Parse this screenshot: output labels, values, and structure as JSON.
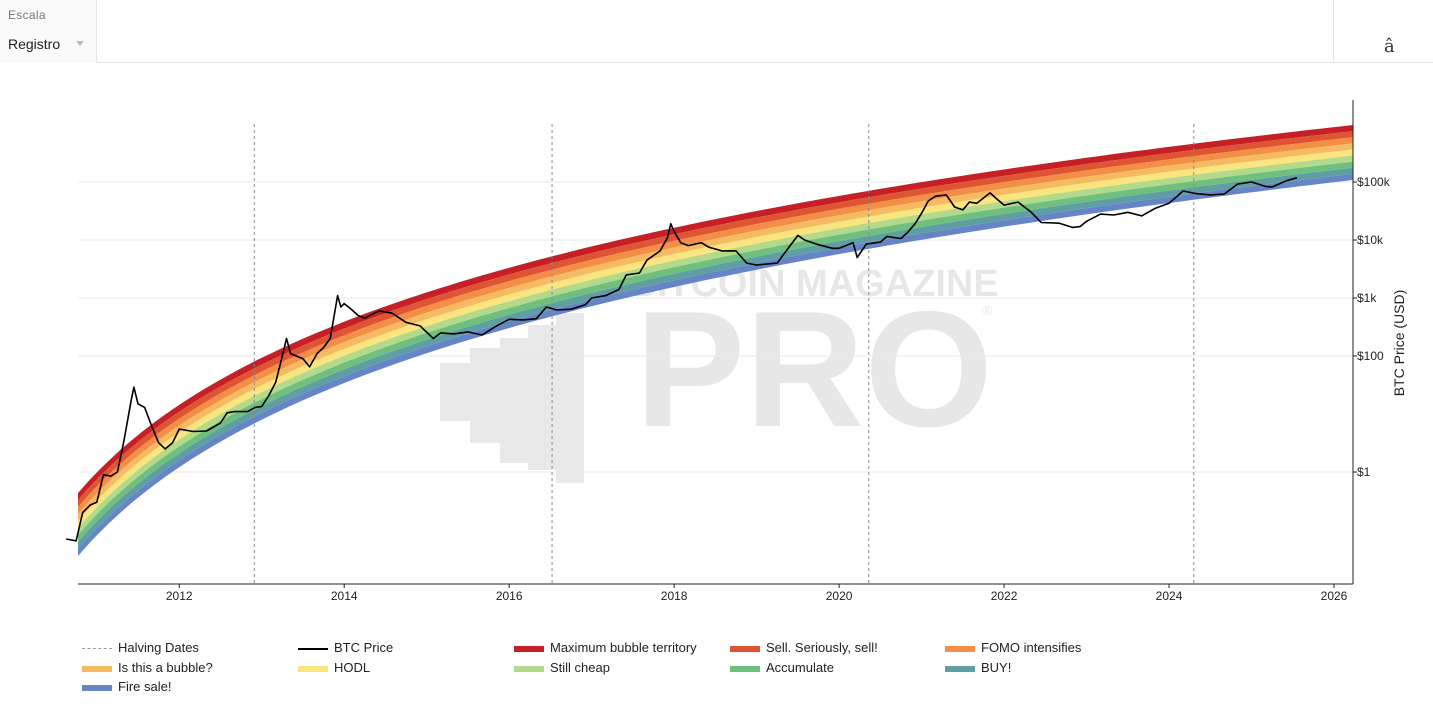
{
  "controls": {
    "scale_label": "Escala",
    "scale_value": "Registro",
    "right_glyph": "â"
  },
  "watermark": {
    "top_text": "BITCOIN MAGAZINE",
    "main_text": "PRO",
    "reg": "®"
  },
  "chart_data": {
    "type": "line",
    "title": "",
    "xlabel": "",
    "ylabel": "BTC Price (USD)",
    "y_scale": "log",
    "xlim": [
      2010.63,
      2026.2
    ],
    "ylim": [
      0.02,
      1000000
    ],
    "x_ticks": [
      {
        "value": 2012,
        "label": "2012"
      },
      {
        "value": 2014,
        "label": "2014"
      },
      {
        "value": 2016,
        "label": "2016"
      },
      {
        "value": 2018,
        "label": "2018"
      },
      {
        "value": 2020,
        "label": "2020"
      },
      {
        "value": 2022,
        "label": "2022"
      },
      {
        "value": 2024,
        "label": "2024"
      },
      {
        "value": 2026,
        "label": "2026"
      }
    ],
    "y_ticks": [
      {
        "value": 1,
        "label": "$1"
      },
      {
        "value": 100,
        "label": "$100"
      },
      {
        "value": 1000,
        "label": "$1k"
      },
      {
        "value": 10000,
        "label": "$10k"
      },
      {
        "value": 100000,
        "label": "$100k"
      }
    ],
    "grid": "horizontal",
    "legend_position": "bottom",
    "halving_dates": [
      2012.91,
      2016.52,
      2020.36,
      2024.3
    ],
    "halving_series": {
      "name": "Halving Dates",
      "color": "#999999"
    },
    "price_series": {
      "name": "BTC Price",
      "color": "#000000",
      "points": [
        [
          2010.63,
          0.07
        ],
        [
          2010.75,
          0.065
        ],
        [
          2010.83,
          0.2
        ],
        [
          2010.92,
          0.27
        ],
        [
          2011.0,
          0.3
        ],
        [
          2011.08,
          0.9
        ],
        [
          2011.17,
          0.85
        ],
        [
          2011.25,
          1.0
        ],
        [
          2011.33,
          3.5
        ],
        [
          2011.42,
          18
        ],
        [
          2011.45,
          29
        ],
        [
          2011.5,
          15
        ],
        [
          2011.58,
          13
        ],
        [
          2011.67,
          6
        ],
        [
          2011.75,
          3.2
        ],
        [
          2011.83,
          2.5
        ],
        [
          2011.92,
          3.2
        ],
        [
          2012.0,
          5.5
        ],
        [
          2012.17,
          5
        ],
        [
          2012.33,
          5.1
        ],
        [
          2012.5,
          7
        ],
        [
          2012.58,
          10.5
        ],
        [
          2012.67,
          11
        ],
        [
          2012.83,
          11
        ],
        [
          2012.92,
          13
        ],
        [
          2013.0,
          13.5
        ],
        [
          2013.08,
          20
        ],
        [
          2013.17,
          35
        ],
        [
          2013.25,
          100
        ],
        [
          2013.3,
          200
        ],
        [
          2013.35,
          110
        ],
        [
          2013.5,
          90
        ],
        [
          2013.58,
          65
        ],
        [
          2013.67,
          110
        ],
        [
          2013.75,
          140
        ],
        [
          2013.83,
          200
        ],
        [
          2013.92,
          1100
        ],
        [
          2013.96,
          700
        ],
        [
          2014.0,
          800
        ],
        [
          2014.08,
          650
        ],
        [
          2014.17,
          500
        ],
        [
          2014.25,
          450
        ],
        [
          2014.42,
          600
        ],
        [
          2014.58,
          550
        ],
        [
          2014.75,
          380
        ],
        [
          2014.92,
          330
        ],
        [
          2015.08,
          200
        ],
        [
          2015.17,
          250
        ],
        [
          2015.33,
          240
        ],
        [
          2015.5,
          260
        ],
        [
          2015.67,
          230
        ],
        [
          2015.83,
          320
        ],
        [
          2016.0,
          430
        ],
        [
          2016.17,
          420
        ],
        [
          2016.33,
          440
        ],
        [
          2016.45,
          700
        ],
        [
          2016.58,
          620
        ],
        [
          2016.75,
          640
        ],
        [
          2016.92,
          760
        ],
        [
          2017.0,
          1000
        ],
        [
          2017.17,
          1100
        ],
        [
          2017.33,
          1400
        ],
        [
          2017.42,
          2500
        ],
        [
          2017.58,
          2700
        ],
        [
          2017.67,
          4500
        ],
        [
          2017.83,
          6500
        ],
        [
          2017.92,
          11000
        ],
        [
          2017.96,
          19000
        ],
        [
          2018.0,
          14000
        ],
        [
          2018.08,
          9000
        ],
        [
          2018.17,
          8000
        ],
        [
          2018.33,
          9000
        ],
        [
          2018.42,
          7500
        ],
        [
          2018.58,
          6500
        ],
        [
          2018.75,
          6500
        ],
        [
          2018.88,
          4000
        ],
        [
          2019.0,
          3700
        ],
        [
          2019.25,
          4000
        ],
        [
          2019.42,
          8500
        ],
        [
          2019.5,
          12000
        ],
        [
          2019.58,
          10000
        ],
        [
          2019.75,
          8300
        ],
        [
          2019.92,
          7200
        ],
        [
          2020.0,
          7200
        ],
        [
          2020.17,
          9000
        ],
        [
          2020.22,
          5000
        ],
        [
          2020.33,
          8500
        ],
        [
          2020.5,
          9200
        ],
        [
          2020.58,
          11500
        ],
        [
          2020.75,
          10600
        ],
        [
          2020.83,
          13500
        ],
        [
          2020.92,
          19000
        ],
        [
          2021.0,
          29000
        ],
        [
          2021.08,
          47000
        ],
        [
          2021.17,
          57000
        ],
        [
          2021.3,
          60000
        ],
        [
          2021.4,
          37000
        ],
        [
          2021.5,
          33000
        ],
        [
          2021.58,
          45000
        ],
        [
          2021.67,
          43000
        ],
        [
          2021.83,
          65000
        ],
        [
          2021.92,
          50000
        ],
        [
          2022.0,
          40000
        ],
        [
          2022.17,
          45000
        ],
        [
          2022.33,
          30000
        ],
        [
          2022.45,
          20000
        ],
        [
          2022.67,
          19500
        ],
        [
          2022.83,
          16500
        ],
        [
          2022.92,
          17000
        ],
        [
          2023.0,
          21000
        ],
        [
          2023.17,
          28000
        ],
        [
          2023.33,
          27000
        ],
        [
          2023.5,
          30000
        ],
        [
          2023.67,
          26000
        ],
        [
          2023.83,
          35000
        ],
        [
          2024.0,
          43000
        ],
        [
          2024.17,
          70000
        ],
        [
          2024.33,
          63000
        ],
        [
          2024.5,
          60000
        ],
        [
          2024.67,
          62000
        ],
        [
          2024.83,
          92000
        ],
        [
          2025.0,
          100000
        ],
        [
          2025.17,
          84000
        ],
        [
          2025.25,
          82000
        ],
        [
          2025.42,
          105000
        ],
        [
          2025.55,
          118000
        ]
      ]
    },
    "rainbow_bands": [
      {
        "name": "Maximum bubble territory",
        "color": "#c62026"
      },
      {
        "name": "Sell. Seriously, sell!",
        "color": "#df5534"
      },
      {
        "name": "FOMO intensifies",
        "color": "#f28e45"
      },
      {
        "name": "Is this a bubble?",
        "color": "#f6bb62"
      },
      {
        "name": "HODL",
        "color": "#fbe57f"
      },
      {
        "name": "Still cheap",
        "color": "#b3d98a"
      },
      {
        "name": "Accumulate",
        "color": "#6fc07f"
      },
      {
        "name": "BUY!",
        "color": "#5f9ea3"
      },
      {
        "name": "Fire sale!",
        "color": "#6685c6"
      }
    ]
  }
}
